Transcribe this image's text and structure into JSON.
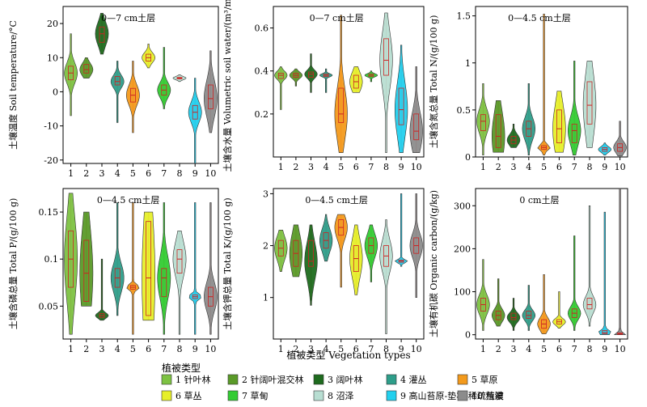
{
  "figure": {
    "xlabel_shared": "植被类型 Vegetation types",
    "legend": {
      "title": "植被类型",
      "items": [
        {
          "label": "1 针叶林",
          "color": "#7dc242"
        },
        {
          "label": "2 针阔叶混交林",
          "color": "#5a9a28"
        },
        {
          "label": "3 阔叶林",
          "color": "#1e6b1e"
        },
        {
          "label": "4 灌丛",
          "color": "#2e9e8a"
        },
        {
          "label": "5 草原",
          "color": "#f39a1c"
        },
        {
          "label": "6 草丛",
          "color": "#e6ef2a"
        },
        {
          "label": "7 草甸",
          "color": "#33cc33"
        },
        {
          "label": "8 沼泽",
          "color": "#b8ded2"
        },
        {
          "label": "9 高山苔原-垫状-稀疏植被",
          "color": "#22d0ee"
        },
        {
          "label": "10 荒漠",
          "color": "#8c8c8c"
        }
      ]
    }
  },
  "chart_data": [
    {
      "type": "violin",
      "annotation": "0—7 cm土层",
      "ylabel": "土壤温度 Soil temperature/°C",
      "categories": [
        "1",
        "2",
        "3",
        "4",
        "5",
        "6",
        "7",
        "8",
        "9",
        "10"
      ],
      "ylim": [
        -21,
        25
      ],
      "yticks": [
        -20,
        -10,
        0,
        10,
        20
      ],
      "median": [
        5.5,
        6.5,
        17,
        3,
        -1,
        10,
        0.5,
        4,
        -6,
        -2
      ],
      "q1": [
        3.5,
        5.5,
        14.5,
        2,
        -3,
        9,
        -1,
        3.8,
        -8,
        -5
      ],
      "q3": [
        7.5,
        8,
        19,
        4.5,
        1,
        11,
        2,
        4.2,
        -4,
        2
      ],
      "min": [
        -7,
        4,
        11,
        -9,
        -12,
        7,
        -5,
        3,
        -21,
        -12
      ],
      "max": [
        17,
        10,
        23,
        9,
        9,
        14,
        13,
        5,
        4,
        12
      ]
    },
    {
      "type": "violin",
      "annotation": "0—7 cm土层",
      "ylabel": "土壤含水量 Volumetric soil water/(m³/m³)",
      "categories": [
        "1",
        "2",
        "3",
        "4",
        "5",
        "6",
        "7",
        "8",
        "9",
        "10"
      ],
      "ylim": [
        0,
        0.7
      ],
      "yticks": [
        0.2,
        0.4,
        0.6
      ],
      "median": [
        0.38,
        0.38,
        0.385,
        0.38,
        0.2,
        0.35,
        0.38,
        0.45,
        0.22,
        0.12
      ],
      "q1": [
        0.365,
        0.37,
        0.37,
        0.375,
        0.16,
        0.32,
        0.375,
        0.38,
        0.15,
        0.08
      ],
      "q3": [
        0.39,
        0.39,
        0.395,
        0.385,
        0.32,
        0.38,
        0.385,
        0.55,
        0.32,
        0.2
      ],
      "min": [
        0.22,
        0.33,
        0.3,
        0.3,
        0.02,
        0.3,
        0.35,
        0.02,
        0.02,
        0.02
      ],
      "max": [
        0.42,
        0.41,
        0.48,
        0.41,
        0.66,
        0.42,
        0.4,
        0.67,
        0.52,
        0.42
      ]
    },
    {
      "type": "violin",
      "annotation": "0—4.5 cm土层",
      "ylabel": "土壤含氮总量 Total N/(g/100 g)",
      "categories": [
        "1",
        "2",
        "3",
        "4",
        "5",
        "6",
        "7",
        "8",
        "9",
        "10"
      ],
      "ylim": [
        0,
        1.6
      ],
      "yticks": [
        0,
        0.5,
        1.0,
        1.5
      ],
      "median": [
        0.38,
        0.22,
        0.18,
        0.3,
        0.1,
        0.3,
        0.28,
        0.55,
        0.08,
        0.1
      ],
      "q1": [
        0.28,
        0.1,
        0.14,
        0.22,
        0.08,
        0.15,
        0.15,
        0.35,
        0.06,
        0.06
      ],
      "q3": [
        0.45,
        0.45,
        0.22,
        0.38,
        0.12,
        0.5,
        0.35,
        0.8,
        0.1,
        0.14
      ],
      "min": [
        0.02,
        0.05,
        0.1,
        0.02,
        0.02,
        0.05,
        0.02,
        0.1,
        0.02,
        0.01
      ],
      "max": [
        0.78,
        0.6,
        0.35,
        0.78,
        1.52,
        0.7,
        1.02,
        1.02,
        0.15,
        0.38
      ]
    },
    {
      "type": "violin",
      "annotation": "0—4.5 cm土层",
      "ylabel": "土壤含磷总量 Total P/(g/100 g)",
      "categories": [
        "1",
        "2",
        "3",
        "4",
        "5",
        "6",
        "7",
        "8",
        "9",
        "10"
      ],
      "ylim": [
        0.015,
        0.175
      ],
      "yticks": [
        0.05,
        0.1,
        0.15
      ],
      "median": [
        0.1,
        0.085,
        0.04,
        0.08,
        0.07,
        0.08,
        0.08,
        0.1,
        0.06,
        0.06
      ],
      "q1": [
        0.07,
        0.055,
        0.038,
        0.07,
        0.068,
        0.04,
        0.06,
        0.085,
        0.058,
        0.05
      ],
      "q3": [
        0.13,
        0.12,
        0.042,
        0.09,
        0.072,
        0.14,
        0.09,
        0.11,
        0.062,
        0.07
      ],
      "min": [
        0.02,
        0.05,
        0.035,
        0.04,
        0.02,
        0.035,
        0.02,
        0.02,
        0.02,
        0.02
      ],
      "max": [
        0.17,
        0.15,
        0.1,
        0.16,
        0.16,
        0.15,
        0.16,
        0.13,
        0.16,
        0.16
      ]
    },
    {
      "type": "violin",
      "annotation": "0—4.5 cm土层",
      "ylabel": "土壤含钾总量 Total K/(g/100 g)",
      "categories": [
        "1",
        "2",
        "3",
        "4",
        "5",
        "6",
        "7",
        "8",
        "9",
        "10"
      ],
      "ylim": [
        0.2,
        3.1
      ],
      "yticks": [
        1,
        2,
        3
      ],
      "median": [
        1.95,
        1.85,
        1.7,
        2.1,
        2.35,
        1.75,
        2.0,
        1.8,
        1.7,
        2.0
      ],
      "q1": [
        1.8,
        1.6,
        1.6,
        1.95,
        2.2,
        1.5,
        1.85,
        1.6,
        1.68,
        1.85
      ],
      "q3": [
        2.1,
        2.1,
        2.1,
        2.25,
        2.5,
        2.0,
        2.15,
        2.0,
        1.72,
        2.15
      ],
      "min": [
        1.5,
        1.4,
        0.85,
        1.7,
        1.2,
        1.05,
        1.3,
        0.3,
        1.6,
        1.0
      ],
      "max": [
        2.3,
        2.4,
        2.4,
        2.6,
        2.6,
        2.4,
        2.4,
        2.5,
        3.0,
        3.0
      ]
    },
    {
      "type": "violin",
      "annotation": "0 cm土层",
      "ylabel": "土壤有机碳 Organic carbon/(g/kg)",
      "categories": [
        "1",
        "2",
        "3",
        "4",
        "5",
        "6",
        "7",
        "8",
        "9",
        "10"
      ],
      "ylim": [
        -10,
        340
      ],
      "yticks": [
        0,
        100,
        200,
        300
      ],
      "median": [
        70,
        45,
        40,
        45,
        25,
        30,
        50,
        70,
        5,
        2
      ],
      "q1": [
        55,
        35,
        35,
        38,
        15,
        25,
        40,
        60,
        2,
        1
      ],
      "q3": [
        85,
        55,
        50,
        55,
        35,
        35,
        60,
        85,
        10,
        4
      ],
      "min": [
        10,
        20,
        10,
        10,
        2,
        15,
        10,
        20,
        0,
        0
      ],
      "max": [
        175,
        130,
        85,
        115,
        140,
        100,
        230,
        300,
        285,
        340
      ]
    }
  ]
}
